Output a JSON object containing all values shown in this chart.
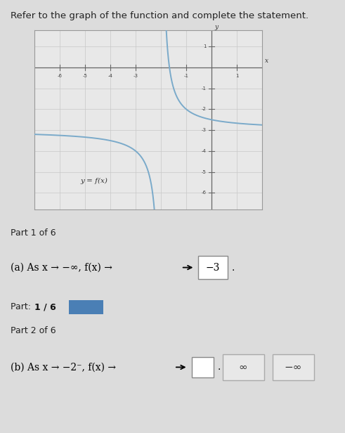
{
  "title": "Refer to the graph of the function and complete the statement.",
  "graph_xlim": [
    -7,
    2
  ],
  "graph_ylim": [
    -6.8,
    1.8
  ],
  "vertical_asymptote": -2,
  "horizontal_asymptote": -3,
  "func_label": "y = f(x)",
  "curve_color": "#7aaaca",
  "grid_color": "#c8c8c8",
  "axis_color": "#666666",
  "bg_color": "#dcdcdc",
  "panel_bg": "#c8c8c8",
  "content_bg": "#e8e8e8",
  "white_bg": "#ffffff",
  "part1_header": "Part 1 of 6",
  "part1_text_a": "(a) As x → −∞, f(x) →",
  "part1_answer": "−3",
  "part2_progress_header": "Part: 1 / 6",
  "part2_subheader": "Part 2 of 6",
  "part2_text_b": "(b) As x → −2⁻, f(x) →",
  "part2_answer": "",
  "choice1": "∞",
  "choice2": "−∞",
  "progress_color": "#4a7fb5",
  "answer_box_border": "#999999",
  "xticks": [
    -6,
    -5,
    -4,
    -3,
    -1,
    1
  ],
  "yticks": [
    1,
    -1,
    -2,
    -3,
    -4,
    -5,
    -6
  ]
}
